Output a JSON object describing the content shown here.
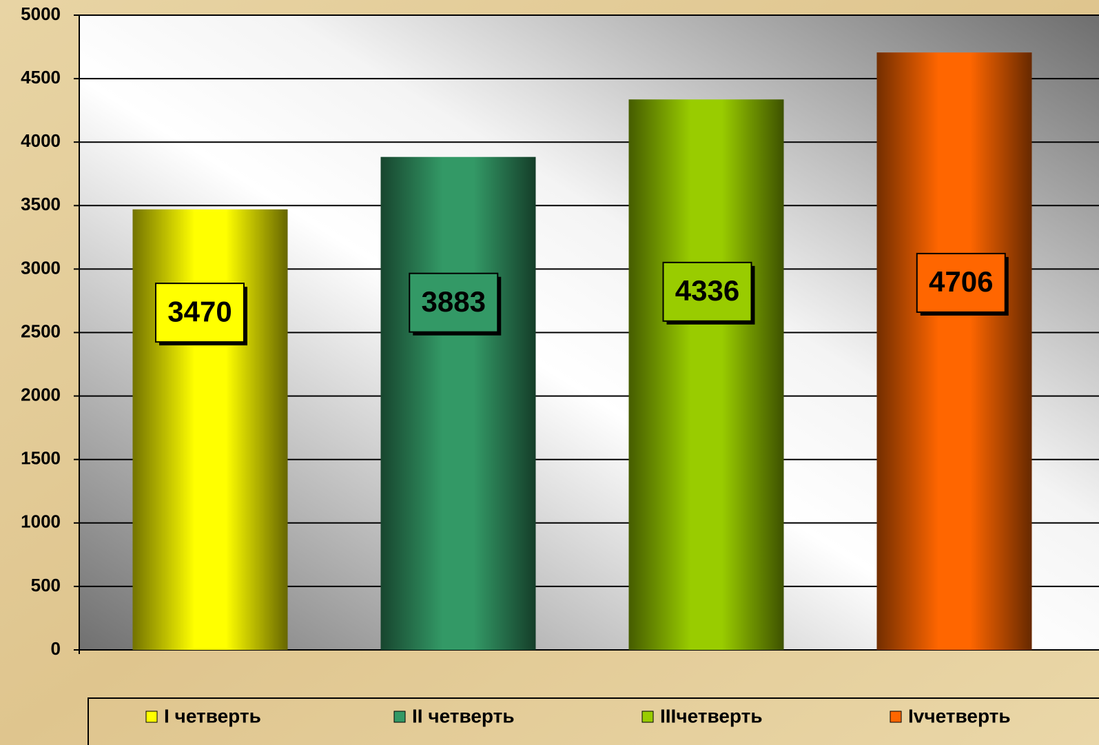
{
  "chart_data": {
    "type": "bar",
    "series": [
      {
        "name": "I четверть",
        "color": "#ffff00",
        "values": [
          3470
        ]
      },
      {
        "name": "II четверть",
        "color": "#339966",
        "values": [
          3883
        ]
      },
      {
        "name": "IIIчетверть",
        "color": "#99cc00",
        "values": [
          4336
        ]
      },
      {
        "name": "Ivчетверть",
        "color": "#ff6600",
        "values": [
          4706
        ]
      }
    ],
    "ylim": [
      0,
      5000
    ],
    "yticks": [
      0,
      500,
      1000,
      1500,
      2000,
      2500,
      3000,
      3500,
      4000,
      4500,
      5000
    ],
    "grid": true,
    "legend": "bottom"
  }
}
